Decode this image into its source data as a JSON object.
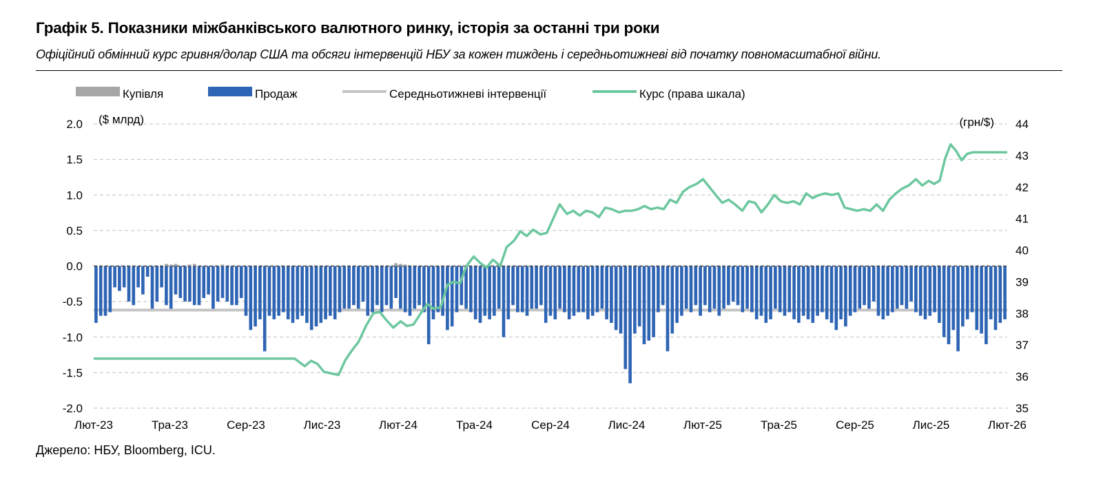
{
  "title": "Графік 5. Показники міжбанківського валютного ринку, історія за останні три роки",
  "subtitle": "Офіційний обмінний курс гривня/долар США та обсяги інтервенцій НБУ за кожен тиждень і середньотижневі від початку повномасштабної війни.",
  "source": "Джерело: НБУ, Bloomberg, ICU.",
  "colors": {
    "buy": "#a6a6a6",
    "sell": "#2e64b4",
    "avg": "#c4c4c4",
    "rate": "#6cc79e",
    "grid": "#bfbfbf"
  },
  "chart_data": {
    "type": "bar",
    "left_axis_unit": "($ млрд)",
    "right_axis_unit": "(грн/$)",
    "ylim_left": [
      -2.0,
      2.0
    ],
    "ylim_right": [
      35,
      44
    ],
    "y_ticks_left": [
      "2.0",
      "1.5",
      "1.0",
      "0.5",
      "0.0",
      "-0.5",
      "-1.0",
      "-1.5",
      "-2.0"
    ],
    "y_ticks_right": [
      "44",
      "43",
      "42",
      "41",
      "40",
      "39",
      "38",
      "37",
      "36",
      "35"
    ],
    "x_ticks": [
      "Лют-23",
      "Тра-23",
      "Сер-23",
      "Лис-23",
      "Лют-24",
      "Тра-24",
      "Сер-24",
      "Лис-24",
      "Лют-25",
      "Тра-25",
      "Сер-25",
      "Лис-25",
      "Лют-26"
    ],
    "legend": [
      "Купівля",
      "Продаж",
      "Середньотижневі інтервенції",
      "Курс (права шкала)"
    ],
    "average_intervention": -0.62,
    "series": [
      {
        "name": "Продаж",
        "axis": "left",
        "values": [
          -0.8,
          -0.7,
          -0.7,
          -0.65,
          -0.3,
          -0.35,
          -0.3,
          -0.5,
          -0.55,
          -0.3,
          -0.4,
          -0.15,
          -0.6,
          -0.5,
          -0.3,
          -0.55,
          -0.6,
          -0.4,
          -0.45,
          -0.5,
          -0.5,
          -0.55,
          -0.55,
          -0.45,
          -0.4,
          -0.6,
          -0.5,
          -0.45,
          -0.5,
          -0.55,
          -0.55,
          -0.45,
          -0.7,
          -0.9,
          -0.85,
          -0.75,
          -1.2,
          -0.7,
          -0.75,
          -0.7,
          -0.65,
          -0.75,
          -0.8,
          -0.75,
          -0.7,
          -0.8,
          -0.9,
          -0.85,
          -0.8,
          -0.75,
          -0.7,
          -0.75,
          -0.65,
          -0.6,
          -0.6,
          -0.55,
          -0.6,
          -0.5,
          -0.7,
          -0.65,
          -0.55,
          -0.65,
          -0.55,
          -0.6,
          -0.45,
          -0.6,
          -0.65,
          -0.7,
          -0.6,
          -0.55,
          -0.65,
          -1.1,
          -0.75,
          -0.65,
          -0.7,
          -0.9,
          -0.85,
          -0.65,
          -0.55,
          -0.6,
          -0.65,
          -0.75,
          -0.8,
          -0.7,
          -0.75,
          -0.7,
          -0.6,
          -1.0,
          -0.75,
          -0.55,
          -0.65,
          -0.65,
          -0.7,
          -0.6,
          -0.6,
          -0.55,
          -0.8,
          -0.7,
          -0.75,
          -0.6,
          -0.65,
          -0.75,
          -0.7,
          -0.65,
          -0.65,
          -0.75,
          -0.7,
          -0.65,
          -0.6,
          -0.75,
          -0.8,
          -0.9,
          -0.95,
          -1.45,
          -1.65,
          -0.95,
          -0.85,
          -1.1,
          -1.05,
          -1.0,
          -0.65,
          -0.55,
          -1.2,
          -0.95,
          -0.8,
          -0.7,
          -0.6,
          -0.65,
          -0.55,
          -0.7,
          -0.55,
          -0.65,
          -0.6,
          -0.7,
          -0.6,
          -0.55,
          -0.5,
          -0.55,
          -0.65,
          -0.6,
          -0.65,
          -0.75,
          -0.7,
          -0.8,
          -0.75,
          -0.6,
          -0.65,
          -0.7,
          -0.65,
          -0.75,
          -0.8,
          -0.7,
          -0.75,
          -0.8,
          -0.7,
          -0.65,
          -0.75,
          -0.8,
          -0.9,
          -0.75,
          -0.85,
          -0.7,
          -0.65,
          -0.6,
          -0.55,
          -0.6,
          -0.5,
          -0.7,
          -0.75,
          -0.7,
          -0.65,
          -0.6,
          -0.55,
          -0.6,
          -0.5,
          -0.65,
          -0.7,
          -0.75,
          -0.7,
          -0.65,
          -0.8,
          -1.0,
          -1.1,
          -0.9,
          -1.2,
          -0.85,
          -0.75,
          -0.65,
          -0.9,
          -0.95,
          -1.1,
          -0.75,
          -0.9,
          -0.8,
          -0.75
        ]
      },
      {
        "name": "Купівля",
        "axis": "left",
        "values": [
          0,
          0,
          0,
          0,
          0,
          0,
          0,
          0,
          0,
          0,
          0,
          0,
          0,
          0,
          0,
          0.03,
          0.02,
          0.03,
          0,
          0,
          0.02,
          0.03,
          0,
          0,
          0,
          0,
          0,
          0.02,
          0,
          0,
          0,
          0,
          0,
          0,
          0,
          0,
          0,
          0,
          0,
          0,
          0,
          0,
          0,
          0,
          0,
          0,
          0,
          0,
          0,
          0,
          0,
          0,
          0,
          0,
          0,
          0,
          0,
          0,
          0,
          0,
          0,
          0,
          0,
          0,
          0.04,
          0.03,
          0.02,
          0,
          0,
          0,
          0,
          0,
          0,
          0,
          0,
          0,
          0,
          0,
          0,
          0,
          0,
          0,
          0,
          0,
          0,
          0,
          0,
          0,
          0,
          0,
          0,
          0,
          0,
          0,
          0,
          0,
          0,
          0,
          0,
          0,
          0,
          0,
          0,
          0,
          0,
          0,
          0,
          0,
          0,
          0,
          0,
          0,
          0,
          0,
          0,
          0,
          0,
          0,
          0,
          0,
          0,
          0,
          0,
          0,
          0,
          0,
          0,
          0,
          0,
          0,
          0,
          0,
          0,
          0,
          0,
          0,
          0,
          0,
          0,
          0,
          0,
          0,
          0,
          0,
          0,
          0,
          0,
          0,
          0,
          0,
          0,
          0,
          0,
          0,
          0,
          0,
          0,
          0,
          0,
          0,
          0,
          0,
          0,
          0,
          0,
          0,
          0,
          0,
          0,
          0,
          0,
          0,
          0,
          0,
          0,
          0,
          0,
          0,
          0,
          0,
          0,
          0,
          0,
          0,
          0,
          0,
          0,
          0,
          0,
          0,
          0,
          0,
          0,
          0,
          0,
          0,
          0,
          0,
          0,
          0,
          0,
          0,
          0,
          0,
          0
        ]
      },
      {
        "name": "Курс (права шкала)",
        "axis": "right",
        "x_frac": [
          0,
          0.22,
          0.231,
          0.238,
          0.245,
          0.252,
          0.26,
          0.268,
          0.275,
          0.282,
          0.29,
          0.298,
          0.306,
          0.313,
          0.32,
          0.328,
          0.336,
          0.343,
          0.35,
          0.358,
          0.365,
          0.372,
          0.38,
          0.387,
          0.394,
          0.401,
          0.408,
          0.416,
          0.423,
          0.43,
          0.437,
          0.445,
          0.452,
          0.46,
          0.467,
          0.474,
          0.481,
          0.489,
          0.496,
          0.503,
          0.51,
          0.518,
          0.525,
          0.532,
          0.539,
          0.546,
          0.553,
          0.56,
          0.567,
          0.575,
          0.582,
          0.589,
          0.596,
          0.603,
          0.61,
          0.617,
          0.624,
          0.631,
          0.638,
          0.645,
          0.652,
          0.66,
          0.667,
          0.674,
          0.681,
          0.688,
          0.695,
          0.702,
          0.71,
          0.717,
          0.724,
          0.731,
          0.738,
          0.745,
          0.752,
          0.759,
          0.766,
          0.773,
          0.78,
          0.787,
          0.794,
          0.801,
          0.808,
          0.815,
          0.822,
          0.829,
          0.836,
          0.843,
          0.85,
          0.857,
          0.864,
          0.871,
          0.878,
          0.885,
          0.892,
          0.9,
          0.907,
          0.914,
          0.92,
          0.926,
          0.932,
          0.938,
          0.944,
          0.95,
          0.956,
          0.962,
          0.968,
          0.975,
          0.981,
          0.988,
          0.994,
          1.0
        ],
        "values": [
          36.57,
          36.57,
          36.33,
          36.5,
          36.4,
          36.15,
          36.1,
          36.05,
          36.5,
          36.8,
          37.1,
          37.6,
          38.0,
          38.05,
          37.8,
          37.55,
          37.75,
          37.6,
          37.65,
          38.0,
          38.3,
          38.15,
          38.2,
          38.9,
          39.0,
          38.95,
          39.5,
          39.8,
          39.6,
          39.45,
          39.7,
          39.5,
          40.1,
          40.3,
          40.6,
          40.45,
          40.65,
          40.5,
          40.55,
          41.0,
          41.45,
          41.15,
          41.25,
          41.1,
          41.25,
          41.2,
          41.05,
          41.35,
          41.3,
          41.2,
          41.25,
          41.25,
          41.3,
          41.4,
          41.3,
          41.35,
          41.3,
          41.6,
          41.5,
          41.85,
          42.0,
          42.1,
          42.25,
          42.0,
          41.75,
          41.5,
          41.6,
          41.45,
          41.25,
          41.55,
          41.5,
          41.2,
          41.45,
          41.75,
          41.55,
          41.5,
          41.55,
          41.45,
          41.8,
          41.65,
          41.75,
          41.8,
          41.75,
          41.8,
          41.35,
          41.3,
          41.25,
          41.3,
          41.25,
          41.45,
          41.25,
          41.6,
          41.8,
          41.95,
          42.05,
          42.25,
          42.05,
          42.2,
          42.1,
          42.2,
          42.9,
          43.35,
          43.15,
          42.85,
          43.05,
          43.1,
          43.1,
          43.1,
          43.1,
          43.1,
          43.1,
          43.1
        ]
      }
    ]
  }
}
